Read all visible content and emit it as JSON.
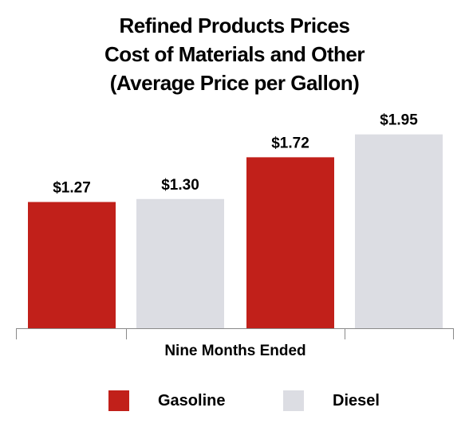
{
  "chart_data": {
    "type": "bar",
    "title": [
      "Refined Products Prices",
      "Cost of Materials and Other",
      "(Average Price per Gallon)"
    ],
    "xlabel": "Nine Months Ended",
    "ylabel": "",
    "ylim": [
      0,
      2.18
    ],
    "grid": false,
    "legend_position": "bottom",
    "categories": [
      "",
      ""
    ],
    "series": [
      {
        "name": "Gasoline",
        "color": "#c1201a",
        "values": [
          1.27,
          1.72
        ],
        "labels": [
          "$1.27",
          "$1.72"
        ]
      },
      {
        "name": "Diesel",
        "color": "#dcdde3",
        "values": [
          1.3,
          1.95
        ],
        "labels": [
          "$1.30",
          "$1.95"
        ]
      }
    ]
  }
}
